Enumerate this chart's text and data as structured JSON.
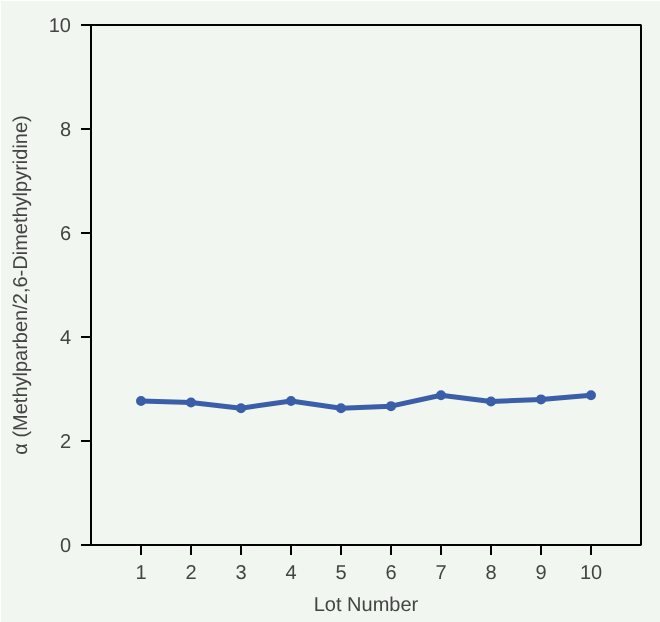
{
  "chart_data": {
    "type": "line",
    "xlabel": "Lot Number",
    "ylabel": "α (Methylparben/2,6-Dimethylpyridine)",
    "x": [
      1,
      2,
      3,
      4,
      5,
      6,
      7,
      8,
      9,
      10
    ],
    "series": [
      {
        "color": "#3a5fa8",
        "values": [
          2.77,
          2.74,
          2.63,
          2.77,
          2.63,
          2.67,
          2.88,
          2.76,
          2.8,
          2.88
        ]
      }
    ],
    "xlim": [
      0,
      11
    ],
    "xticks": [
      1,
      2,
      3,
      4,
      5,
      6,
      7,
      8,
      9,
      10
    ],
    "ylim": [
      0,
      10
    ],
    "yticks": [
      0,
      2,
      4,
      6,
      8,
      10
    ],
    "grid": false,
    "marker": "circle",
    "line_style": "solid"
  }
}
